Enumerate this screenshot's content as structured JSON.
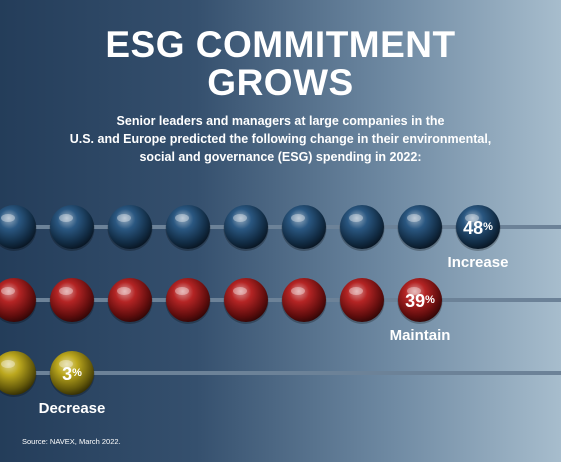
{
  "title_line1": "ESG COMMITMENT",
  "title_line2": "GROWS",
  "subtitle_line1": "Senior leaders and managers at large companies in the",
  "subtitle_line2": "U.S. and Europe predicted the following change in their environmental,",
  "subtitle_line3": "social and governance (ESG) spending in 2022:",
  "source": "Source: NAVEX, March 2022.",
  "colors": {
    "increase": "#1f4e7a",
    "maintain": "#b01818",
    "decrease": "#b8a312",
    "rod": "#6c8298"
  },
  "chart_data": {
    "type": "bar",
    "categories": [
      "Increase",
      "Maintain",
      "Decrease"
    ],
    "values": [
      48,
      39,
      3
    ],
    "unit": "%",
    "color_keys": [
      "increase",
      "maintain",
      "decrease"
    ]
  }
}
